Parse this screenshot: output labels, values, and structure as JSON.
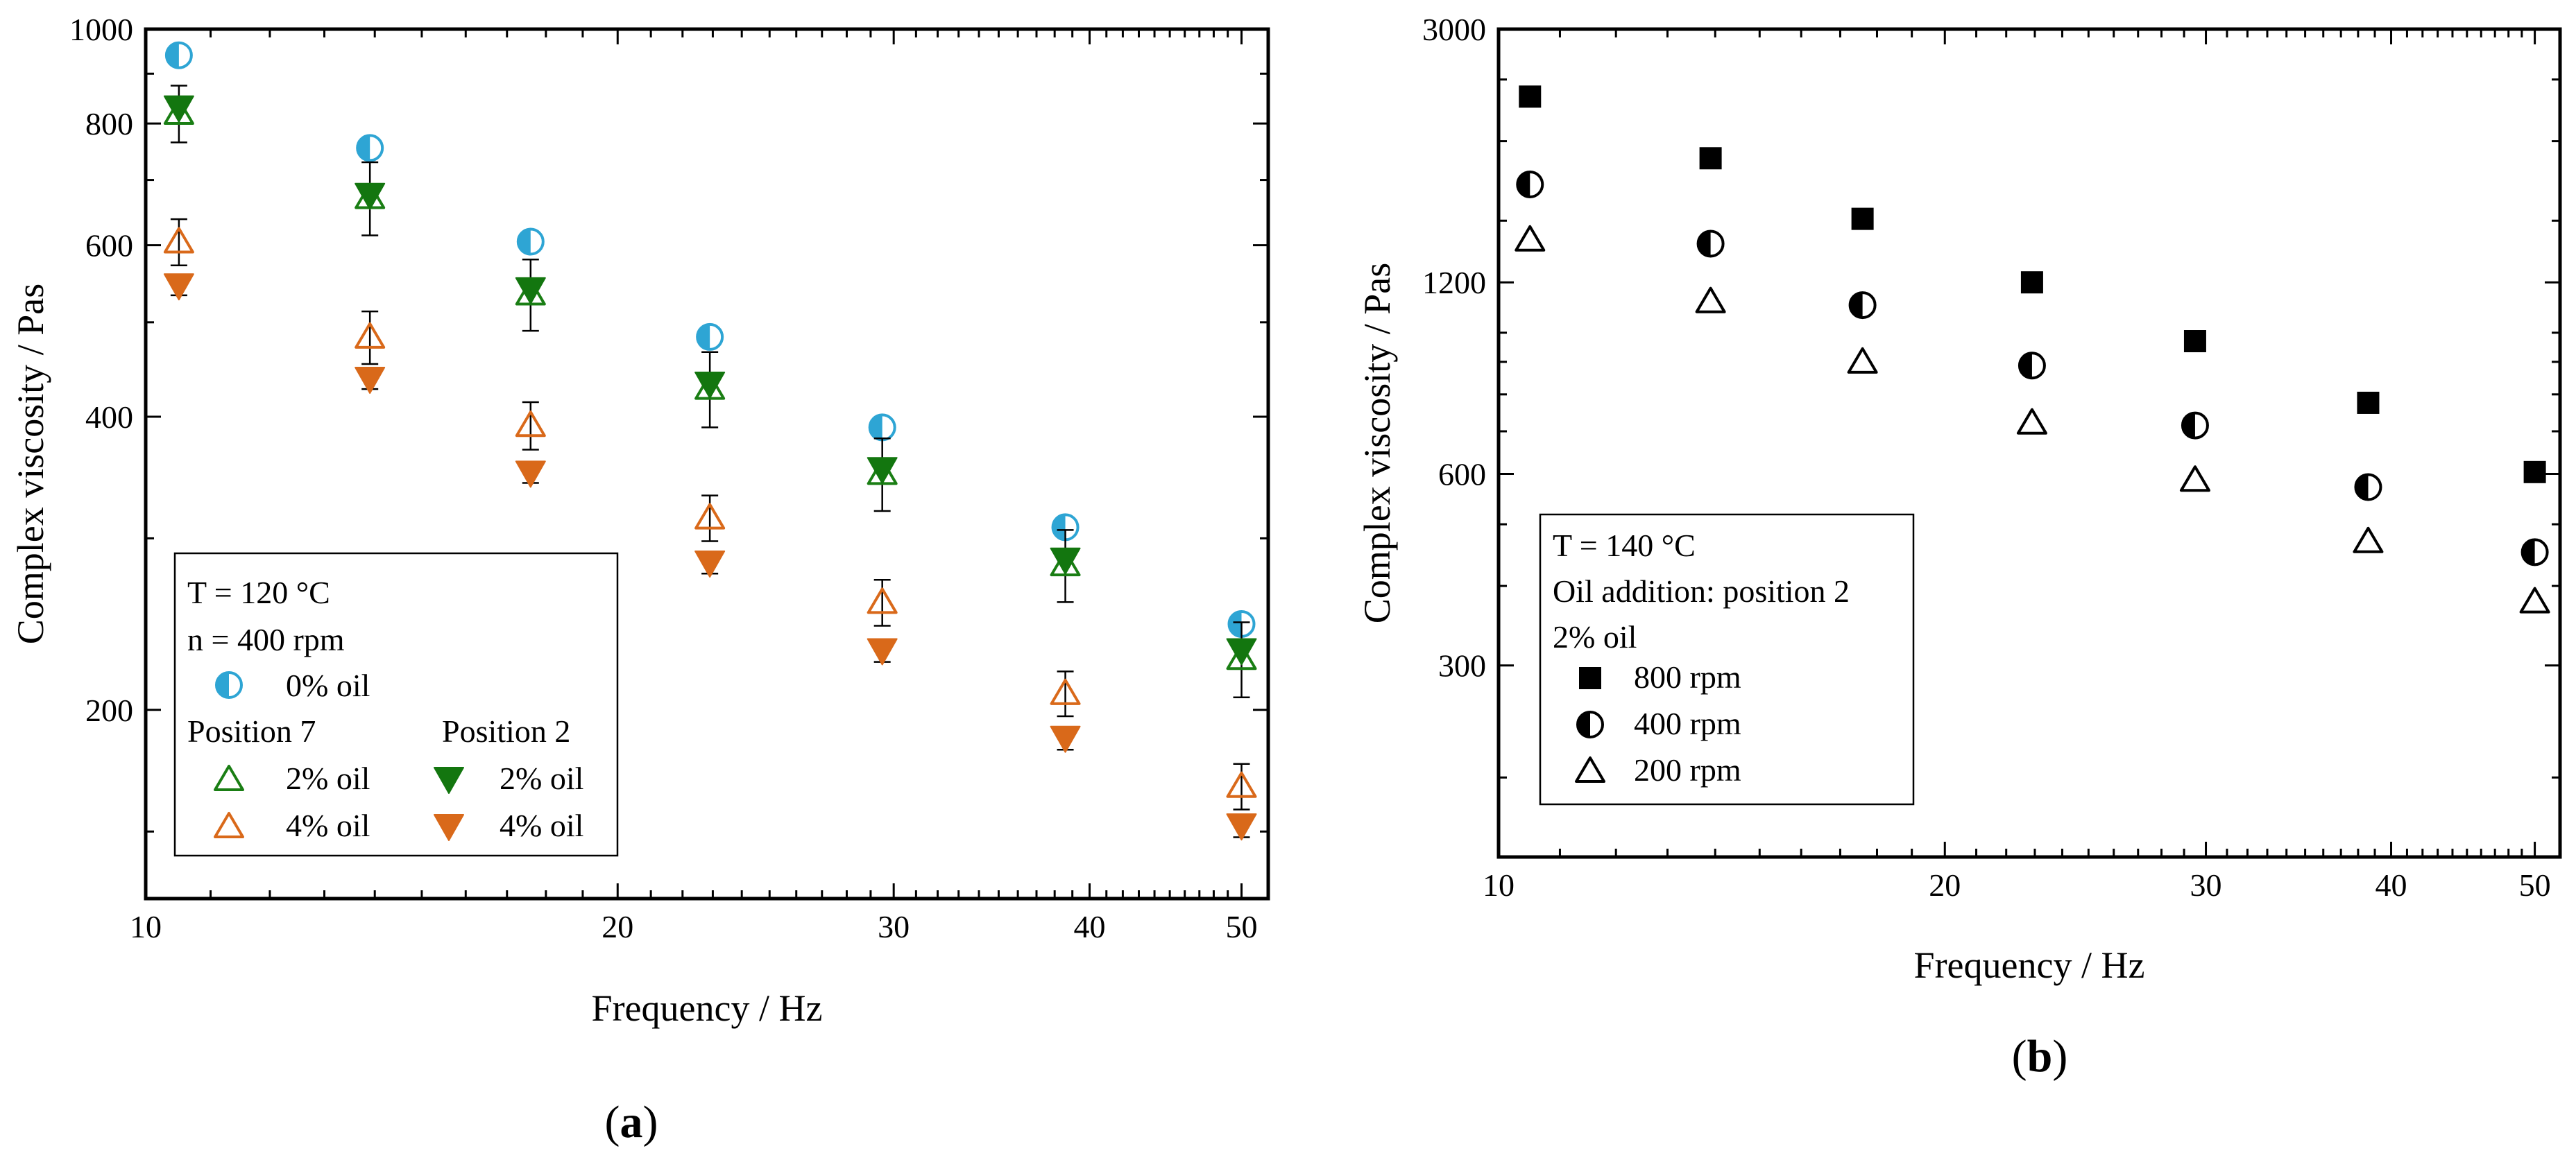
{
  "chart_data": [
    {
      "panel": "(a)",
      "panel_letter": "a",
      "type": "scatter",
      "xlabel": "Frequency / Hz",
      "ylabel": "Complex viscosity / Pas",
      "xscale": "log",
      "yscale": "log",
      "xlim": [
        10,
        52
      ],
      "ylim": [
        128,
        1000
      ],
      "xticks": [
        10,
        20,
        30,
        40,
        50
      ],
      "yticks": [
        200,
        400,
        600,
        800,
        1000
      ],
      "x": [
        10.5,
        13.9,
        17.6,
        22.9,
        29.5,
        38.6,
        50
      ],
      "legend_position": "bottom-left",
      "legend_title_lines": [
        "T = 120 °C",
        "n = 400 rpm"
      ],
      "legend_group_headers": [
        "Position 7",
        "Position 2"
      ],
      "series": [
        {
          "name": "0% oil",
          "marker": "half-circle-left",
          "color": "#2ea5d4",
          "values": [
            940,
            755,
            605,
            483,
            390,
            308,
            245
          ],
          "errors": [
            0,
            0,
            0,
            0,
            0,
            0,
            0
          ]
        },
        {
          "name": "2% oil",
          "group": "Position 7",
          "marker": "open-triangle-up",
          "color": "#1a7e14",
          "values": [
            820,
            672,
            535,
            428,
            350,
            282,
            226
          ],
          "errors": [
            55,
            58,
            45,
            38,
            30,
            24,
            20
          ]
        },
        {
          "name": "4% oil",
          "group": "Position 7",
          "marker": "open-triangle-up",
          "color": "#d9691a",
          "values": [
            605,
            483,
            392,
            315,
            258,
            208,
            167
          ],
          "errors": [
            33,
            30,
            22,
            17,
            14,
            11,
            9
          ]
        },
        {
          "name": "2% oil",
          "group": "Position 2",
          "marker": "filled-triangle-down",
          "color": "#13760f",
          "values": [
            830,
            675,
            540,
            432,
            353,
            285,
            230
          ],
          "errors": [
            0,
            0,
            0,
            0,
            0,
            0,
            0
          ]
        },
        {
          "name": "4% oil",
          "group": "Position 2",
          "marker": "filled-triangle-down",
          "color": "#d9691a",
          "values": [
            545,
            437,
            350,
            283,
            230,
            187,
            152
          ],
          "errors": [
            12,
            10,
            8,
            7,
            6,
            5,
            4
          ]
        }
      ]
    },
    {
      "panel": "(b)",
      "panel_letter": "b",
      "type": "scatter",
      "xlabel": "Frequency / Hz",
      "ylabel": "Complex viscosity / Pas",
      "xscale": "log",
      "yscale": "log",
      "xlim": [
        10,
        52
      ],
      "ylim": [
        150,
        3000
      ],
      "xticks": [
        10,
        20,
        30,
        40,
        50
      ],
      "yticks": [
        300,
        600,
        1200,
        3000
      ],
      "x": [
        10.5,
        13.9,
        17.6,
        22.9,
        29.5,
        38.6,
        50
      ],
      "legend_position": "bottom-left",
      "legend_title_lines": [
        "T = 140 °C",
        "Oil addition: position 2",
        " 2% oil"
      ],
      "series": [
        {
          "name": "800 rpm",
          "marker": "filled-square",
          "color": "#000000",
          "values": [
            2350,
            1880,
            1510,
            1200,
            970,
            776,
            604
          ]
        },
        {
          "name": "400 rpm",
          "marker": "half-circle-left",
          "color": "#000000",
          "values": [
            1710,
            1380,
            1105,
            888,
            715,
            572,
            452
          ]
        },
        {
          "name": "200 rpm",
          "marker": "open-triangle-up",
          "color": "#000000",
          "values": [
            1400,
            1120,
            900,
            722,
            587,
            470,
            378
          ]
        }
      ]
    }
  ]
}
